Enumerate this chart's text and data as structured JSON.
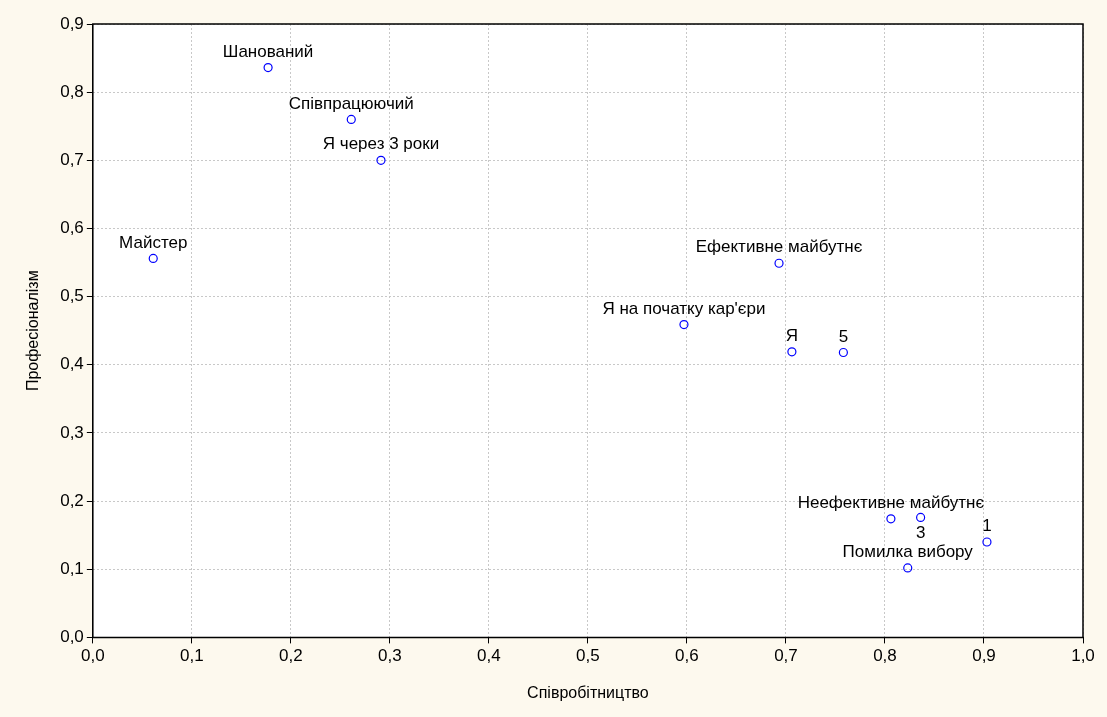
{
  "chart_data": {
    "type": "scatter",
    "xlabel": "Співробітництво",
    "ylabel": "Професіоналізм",
    "x": [
      0.177,
      0.261,
      0.291,
      0.061,
      0.693,
      0.597,
      0.706,
      0.758,
      0.806,
      0.836,
      0.903,
      0.823
    ],
    "series": [
      {
        "color": "#0000ff",
        "values": [
          0.836,
          0.76,
          0.7,
          0.556,
          0.549,
          0.459,
          0.419,
          0.418,
          0.174,
          0.176,
          0.14,
          0.102
        ]
      }
    ],
    "annotations": [
      {
        "text": "Шанований",
        "x": 0.177,
        "y": 0.836
      },
      {
        "text": "Співпрацюючий",
        "x": 0.261,
        "y": 0.76
      },
      {
        "text": "Я через 3 роки",
        "x": 0.291,
        "y": 0.7
      },
      {
        "text": "Майстер",
        "x": 0.061,
        "y": 0.556
      },
      {
        "text": "Ефективне майбутнє",
        "x": 0.693,
        "y": 0.549
      },
      {
        "text": "Я на початку кар'єри",
        "x": 0.597,
        "y": 0.459
      },
      {
        "text": "Я",
        "x": 0.706,
        "y": 0.419
      },
      {
        "text": "5",
        "x": 0.758,
        "y": 0.418
      },
      {
        "text": "Неефективне майбутнє",
        "x": 0.806,
        "y": 0.174
      },
      {
        "text": "3",
        "x": 0.836,
        "y": 0.176
      },
      {
        "text": "1",
        "x": 0.903,
        "y": 0.14
      },
      {
        "text": "Помилка вибору",
        "x": 0.823,
        "y": 0.102
      }
    ],
    "xlim": [
      0,
      1
    ],
    "ylim": [
      0,
      0.9
    ],
    "xticks": [
      {
        "value": 0,
        "label": "0,0"
      },
      {
        "value": 0.1,
        "label": "0,1"
      },
      {
        "value": 0.2,
        "label": "0,2"
      },
      {
        "value": 0.3,
        "label": "0,3"
      },
      {
        "value": 0.4,
        "label": "0,4"
      },
      {
        "value": 0.5,
        "label": "0,5"
      },
      {
        "value": 0.6,
        "label": "0,6"
      },
      {
        "value": 0.7,
        "label": "0,7"
      },
      {
        "value": 0.8,
        "label": "0,8"
      },
      {
        "value": 0.9,
        "label": "0,9"
      },
      {
        "value": 1,
        "label": "1,0"
      }
    ],
    "yticks": [
      {
        "value": 0,
        "label": "0,0"
      },
      {
        "value": 0.1,
        "label": "0,1"
      },
      {
        "value": 0.2,
        "label": "0,2"
      },
      {
        "value": 0.3,
        "label": "0,3"
      },
      {
        "value": 0.4,
        "label": "0,4"
      },
      {
        "value": 0.5,
        "label": "0,5"
      },
      {
        "value": 0.6,
        "label": "0,6"
      },
      {
        "value": 0.7,
        "label": "0,7"
      },
      {
        "value": 0.8,
        "label": "0,8"
      },
      {
        "value": 0.9,
        "label": "0,9"
      }
    ],
    "grid": true,
    "legend": false,
    "marker": "circle"
  }
}
